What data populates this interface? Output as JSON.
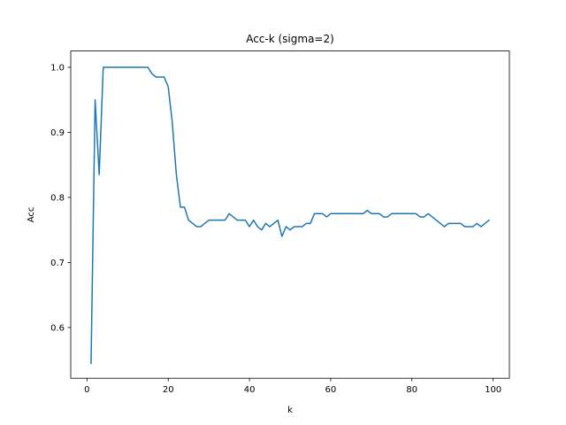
{
  "chart_data": {
    "type": "line",
    "title": "Acc-k (sigma=2)",
    "xlabel": "k",
    "ylabel": "Acc",
    "xlim": [
      -4,
      104
    ],
    "ylim": [
      0.522,
      1.025
    ],
    "xticks": [
      0,
      20,
      40,
      60,
      80,
      100
    ],
    "yticks": [
      0.6,
      0.7,
      0.8,
      0.9,
      1.0
    ],
    "xtick_labels": [
      "0",
      "20",
      "40",
      "60",
      "80",
      "100"
    ],
    "ytick_labels": [
      "0.6",
      "0.7",
      "0.8",
      "0.9",
      "1.0"
    ],
    "grid": false,
    "series": [
      {
        "color": "#1f77b4",
        "x": [
          1,
          2,
          3,
          4,
          5,
          6,
          7,
          8,
          9,
          10,
          11,
          12,
          13,
          14,
          15,
          16,
          17,
          18,
          19,
          20,
          21,
          22,
          23,
          24,
          25,
          26,
          27,
          28,
          29,
          30,
          31,
          32,
          33,
          34,
          35,
          36,
          37,
          38,
          39,
          40,
          41,
          42,
          43,
          44,
          45,
          46,
          47,
          48,
          49,
          50,
          51,
          52,
          53,
          54,
          55,
          56,
          57,
          58,
          59,
          60,
          61,
          62,
          63,
          64,
          65,
          66,
          67,
          68,
          69,
          70,
          71,
          72,
          73,
          74,
          75,
          76,
          77,
          78,
          79,
          80,
          81,
          82,
          83,
          84,
          85,
          86,
          87,
          88,
          89,
          90,
          91,
          92,
          93,
          94,
          95,
          96,
          97,
          98,
          99
        ],
        "y": [
          0.545,
          0.95,
          0.835,
          1.0,
          1.0,
          1.0,
          1.0,
          1.0,
          1.0,
          1.0,
          1.0,
          1.0,
          1.0,
          1.0,
          1.0,
          0.99,
          0.985,
          0.985,
          0.985,
          0.97,
          0.915,
          0.835,
          0.785,
          0.785,
          0.765,
          0.76,
          0.755,
          0.755,
          0.76,
          0.765,
          0.765,
          0.765,
          0.765,
          0.765,
          0.775,
          0.77,
          0.765,
          0.765,
          0.765,
          0.755,
          0.765,
          0.755,
          0.75,
          0.76,
          0.755,
          0.76,
          0.765,
          0.74,
          0.755,
          0.75,
          0.755,
          0.755,
          0.755,
          0.76,
          0.76,
          0.775,
          0.775,
          0.775,
          0.77,
          0.775,
          0.775,
          0.775,
          0.775,
          0.775,
          0.775,
          0.775,
          0.775,
          0.775,
          0.78,
          0.775,
          0.775,
          0.775,
          0.77,
          0.77,
          0.775,
          0.775,
          0.775,
          0.775,
          0.775,
          0.775,
          0.775,
          0.77,
          0.77,
          0.775,
          0.77,
          0.765,
          0.76,
          0.755,
          0.76,
          0.76,
          0.76,
          0.76,
          0.755,
          0.755,
          0.755,
          0.76,
          0.755,
          0.76,
          0.765
        ]
      }
    ]
  }
}
